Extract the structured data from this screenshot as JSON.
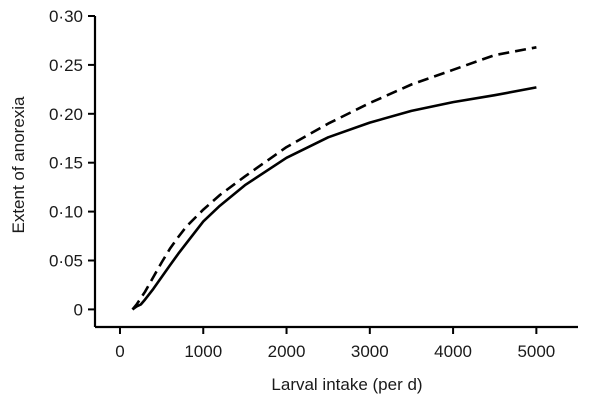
{
  "chart_data": {
    "type": "line",
    "xlabel": "Larval intake (per d)",
    "ylabel": "Extent of anorexia",
    "xlim": [
      -300,
      5500
    ],
    "ylim": [
      -0.018,
      0.3
    ],
    "x_ticks": [
      0,
      1000,
      2000,
      3000,
      4000,
      5000
    ],
    "x_tick_labels": [
      "0",
      "1000",
      "2000",
      "3000",
      "4000",
      "5000"
    ],
    "y_ticks": [
      0,
      0.05,
      0.1,
      0.15,
      0.2,
      0.25,
      0.3
    ],
    "y_tick_labels": [
      "0",
      "0·05",
      "0·10",
      "0·15",
      "0·20",
      "0·25",
      "0·30"
    ],
    "grid": false,
    "series": [
      {
        "style": "dashed",
        "x": [
          150,
          200,
          300,
          400,
          500,
          600,
          700,
          800,
          1000,
          1200,
          1500,
          2000,
          2500,
          3000,
          3500,
          4000,
          4500,
          5000
        ],
        "y": [
          0.0,
          0.005,
          0.018,
          0.033,
          0.048,
          0.062,
          0.074,
          0.085,
          0.102,
          0.117,
          0.136,
          0.166,
          0.19,
          0.211,
          0.23,
          0.245,
          0.26,
          0.268
        ]
      },
      {
        "style": "solid",
        "x": [
          150,
          200,
          250,
          300,
          400,
          500,
          600,
          700,
          800,
          1000,
          1200,
          1500,
          2000,
          2500,
          3000,
          3500,
          4000,
          4500,
          5000
        ],
        "y": [
          0.0,
          0.003,
          0.005,
          0.01,
          0.021,
          0.033,
          0.045,
          0.057,
          0.068,
          0.09,
          0.106,
          0.127,
          0.155,
          0.176,
          0.191,
          0.203,
          0.212,
          0.219,
          0.227
        ]
      }
    ]
  }
}
